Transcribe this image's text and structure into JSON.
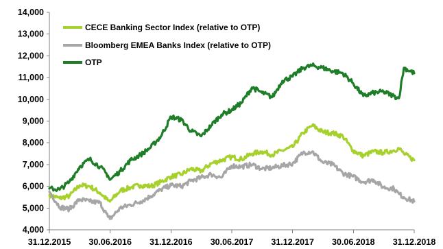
{
  "chart_data": {
    "type": "line",
    "title": "",
    "xlabel": "",
    "ylabel": "",
    "ylim": [
      4000,
      14000
    ],
    "y_ticks": [
      "4,000",
      "5,000",
      "6,000",
      "7,000",
      "8,000",
      "9,000",
      "10,000",
      "11,000",
      "12,000",
      "13,000",
      "14,000"
    ],
    "x_ticks": [
      "31.12.2015",
      "30.06.2016",
      "31.12.2016",
      "30.06.2017",
      "31.12.2017",
      "30.06.2018",
      "31.12.2018"
    ],
    "x_range": [
      "2015-12-31",
      "2018-12-31"
    ],
    "grid": false,
    "legend_position": "top-left",
    "x": [
      "2015-12-31",
      "2016-01-31",
      "2016-02-29",
      "2016-03-31",
      "2016-04-30",
      "2016-05-31",
      "2016-06-24",
      "2016-06-30",
      "2016-07-31",
      "2016-08-31",
      "2016-09-30",
      "2016-10-31",
      "2016-11-30",
      "2016-12-31",
      "2017-01-31",
      "2017-02-28",
      "2017-03-31",
      "2017-04-30",
      "2017-05-31",
      "2017-06-30",
      "2017-07-31",
      "2017-08-31",
      "2017-09-30",
      "2017-10-31",
      "2017-11-30",
      "2017-12-31",
      "2018-01-31",
      "2018-02-28",
      "2018-03-31",
      "2018-04-30",
      "2018-05-31",
      "2018-06-30",
      "2018-07-31",
      "2018-08-31",
      "2018-09-30",
      "2018-10-31",
      "2018-11-15",
      "2018-11-30",
      "2018-12-31"
    ],
    "series": [
      {
        "name": "CECE Banking Sector Index (relative to OTP)",
        "color": "#a6d12c",
        "values": [
          5600,
          5450,
          5550,
          6050,
          6000,
          5700,
          5350,
          5300,
          5800,
          5950,
          6050,
          6000,
          6200,
          6450,
          6550,
          6800,
          6700,
          7050,
          7200,
          7350,
          7250,
          7500,
          7600,
          7450,
          7650,
          7800,
          8450,
          8800,
          8500,
          8450,
          8300,
          7650,
          7400,
          7600,
          7550,
          7650,
          7750,
          7500,
          7200
        ]
      },
      {
        "name": "Bloomberg EMEA Banks Index (relative to OTP)",
        "color": "#a6a6a6",
        "values": [
          5750,
          5050,
          4950,
          5400,
          5300,
          5250,
          4600,
          4500,
          5000,
          5150,
          5300,
          5550,
          5850,
          6050,
          6000,
          6250,
          6400,
          6550,
          6400,
          6950,
          6900,
          7000,
          6800,
          6850,
          6950,
          7050,
          7550,
          7600,
          7100,
          7000,
          6600,
          6450,
          6200,
          6300,
          5950,
          5900,
          5650,
          5500,
          5300
        ]
      },
      {
        "name": "OTP",
        "color": "#1e7d27",
        "values": [
          5900,
          5850,
          6200,
          6900,
          7250,
          6900,
          6500,
          6300,
          6700,
          7200,
          7450,
          7800,
          8300,
          9200,
          9050,
          8550,
          8300,
          8800,
          9300,
          9500,
          9850,
          10550,
          10300,
          10100,
          10850,
          11050,
          11450,
          11550,
          11450,
          11300,
          11200,
          10750,
          10150,
          10300,
          10350,
          10150,
          10050,
          11450,
          11200
        ]
      }
    ]
  }
}
